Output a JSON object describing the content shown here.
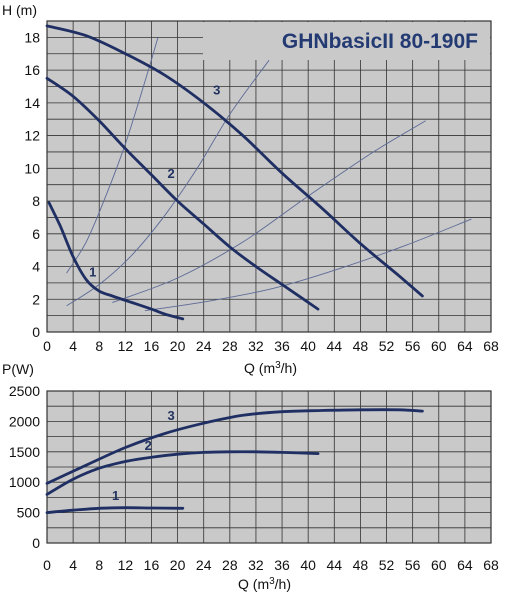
{
  "chart_data": [
    {
      "type": "line",
      "title": "GHNbasicII 80-190F",
      "xlabel": "Q (m3/h)",
      "ylabel": "H (m)",
      "xlim": [
        0,
        68
      ],
      "ylim": [
        0,
        19
      ],
      "x_ticks": [
        0,
        4,
        8,
        12,
        16,
        20,
        24,
        28,
        32,
        36,
        40,
        44,
        48,
        52,
        56,
        60,
        64,
        68
      ],
      "y_ticks": [
        0,
        2,
        4,
        6,
        8,
        10,
        12,
        14,
        16,
        18
      ],
      "grid": true,
      "series": [
        {
          "name": "1",
          "x": [
            0.3,
            2,
            4,
            6,
            8,
            10,
            13,
            16,
            18,
            20.8
          ],
          "y": [
            7.9,
            6.5,
            4.6,
            3.2,
            2.5,
            2.2,
            1.8,
            1.4,
            1.1,
            0.8
          ]
        },
        {
          "name": "2",
          "x": [
            0,
            4,
            8,
            12,
            16,
            20,
            24,
            28,
            32,
            36,
            41.5
          ],
          "y": [
            15.5,
            14.4,
            12.9,
            11.2,
            9.6,
            8.0,
            6.6,
            5.2,
            4.0,
            2.9,
            1.4
          ]
        },
        {
          "name": "3",
          "x": [
            0,
            6,
            12,
            18,
            24,
            30,
            36,
            42,
            48,
            54,
            57.5
          ],
          "y": [
            18.7,
            18.1,
            17.0,
            15.7,
            14.0,
            12.0,
            9.7,
            7.6,
            5.4,
            3.4,
            2.2
          ]
        }
      ],
      "system_curves": [
        {
          "x": [
            3,
            6,
            9,
            12,
            15,
            17
          ],
          "y": [
            3.6,
            5.5,
            8.3,
            11.5,
            15.3,
            18
          ]
        },
        {
          "x": [
            3,
            8,
            13,
            18,
            23,
            28,
            34
          ],
          "y": [
            1.6,
            2.9,
            4.7,
            7.1,
            10.0,
            13.3,
            16.6
          ]
        },
        {
          "x": [
            10,
            20,
            30,
            40,
            50,
            58
          ],
          "y": [
            1.8,
            3.3,
            5.5,
            8.3,
            11.0,
            12.9
          ]
        },
        {
          "x": [
            15,
            25,
            35,
            45,
            55,
            65
          ],
          "y": [
            1.3,
            1.9,
            2.7,
            3.9,
            5.3,
            6.9
          ]
        }
      ],
      "curve_labels": [
        {
          "text": "1",
          "x": 7,
          "y": 3.4
        },
        {
          "text": "2",
          "x": 19,
          "y": 9.4
        },
        {
          "text": "3",
          "x": 26,
          "y": 14.5
        }
      ]
    },
    {
      "type": "line",
      "title": "",
      "xlabel": "Q (m3/h)",
      "ylabel": "P(W)",
      "xlim": [
        0,
        68
      ],
      "ylim": [
        0,
        2500
      ],
      "x_ticks": [
        0,
        4,
        8,
        12,
        16,
        20,
        24,
        28,
        32,
        36,
        40,
        44,
        48,
        52,
        56,
        60,
        64,
        68
      ],
      "y_ticks": [
        0,
        500,
        1000,
        1500,
        2000,
        2500
      ],
      "grid": true,
      "series": [
        {
          "name": "1",
          "x": [
            0,
            4,
            8,
            12,
            16,
            20.8
          ],
          "y": [
            500,
            540,
            570,
            580,
            575,
            570
          ]
        },
        {
          "name": "2",
          "x": [
            0,
            4,
            8,
            12,
            16,
            20,
            24,
            28,
            32,
            36,
            41.5
          ],
          "y": [
            800,
            1050,
            1230,
            1340,
            1410,
            1460,
            1490,
            1500,
            1500,
            1490,
            1470
          ]
        },
        {
          "name": "3",
          "x": [
            0,
            6,
            12,
            18,
            24,
            30,
            36,
            42,
            48,
            54,
            57.5
          ],
          "y": [
            980,
            1280,
            1570,
            1800,
            1970,
            2100,
            2160,
            2180,
            2190,
            2190,
            2170
          ]
        }
      ],
      "curve_labels": [
        {
          "text": "1",
          "x": 10.5,
          "y": 710
        },
        {
          "text": "2",
          "x": 15.5,
          "y": 1530
        },
        {
          "text": "3",
          "x": 19,
          "y": 2020
        }
      ]
    }
  ],
  "style": {
    "plot_bg": "#c9c9c9",
    "grid_color": "#333333",
    "curve_color": "#1f2f63",
    "system_curve_color": "#5c6a96",
    "title_color": "#233a73"
  },
  "labels": {
    "head_axis": "H (m)",
    "head_axis_q": "Q (m",
    "head_axis_q_sup": "3",
    "head_axis_q_tail": "/h)",
    "power_axis": "P(W)",
    "power_axis_q": "Q (m",
    "power_axis_q_sup": "3",
    "power_axis_q_tail": "/h)"
  }
}
